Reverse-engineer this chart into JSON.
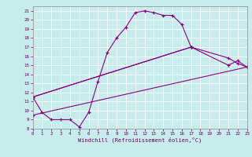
{
  "bg_color": "#c8ecec",
  "grid_color": "#ffffff",
  "line_color": "#880088",
  "marker": "+",
  "xlim": [
    0,
    23
  ],
  "ylim": [
    8,
    21.5
  ],
  "xtick_labels": [
    "0",
    "1",
    "2",
    "3",
    "4",
    "5",
    "6",
    "7",
    "8",
    "9",
    "10",
    "11",
    "12",
    "13",
    "14",
    "15",
    "16",
    "17",
    "18",
    "19",
    "20",
    "21",
    "22",
    "23"
  ],
  "ytick_labels": [
    "8",
    "",
    "",
    "11",
    "",
    "",
    "",
    "",
    "",
    "",
    "",
    "",
    "",
    "21"
  ],
  "ytick_vals": [
    8,
    9,
    10,
    11,
    12,
    13,
    14,
    15,
    16,
    17,
    18,
    19,
    20,
    21
  ],
  "ytick_show": [
    "8",
    "9",
    "10",
    "11",
    "12",
    "13",
    "14",
    "15",
    "16",
    "17",
    "18",
    "19",
    "20",
    "21"
  ],
  "xlabel": "Windchill (Refroidissement éolien,°C)",
  "curves": [
    {
      "x": [
        0,
        1,
        2,
        3,
        4,
        5,
        6,
        7,
        8,
        9,
        10,
        11,
        12,
        13,
        14,
        15,
        16,
        17
      ],
      "y": [
        11.5,
        9.8,
        9.0,
        9.0,
        9.0,
        8.2,
        9.8,
        13.2,
        16.4,
        18.0,
        19.2,
        20.8,
        21.0,
        20.8,
        20.5,
        20.5,
        19.5,
        17.0
      ]
    },
    {
      "x": [
        0,
        17,
        21,
        22,
        23
      ],
      "y": [
        11.5,
        17.0,
        15.8,
        15.2,
        14.8
      ]
    },
    {
      "x": [
        0,
        17,
        21,
        22,
        23
      ],
      "y": [
        11.5,
        17.0,
        15.0,
        15.5,
        14.8
      ]
    },
    {
      "x": [
        0,
        23
      ],
      "y": [
        9.5,
        14.8
      ]
    }
  ]
}
